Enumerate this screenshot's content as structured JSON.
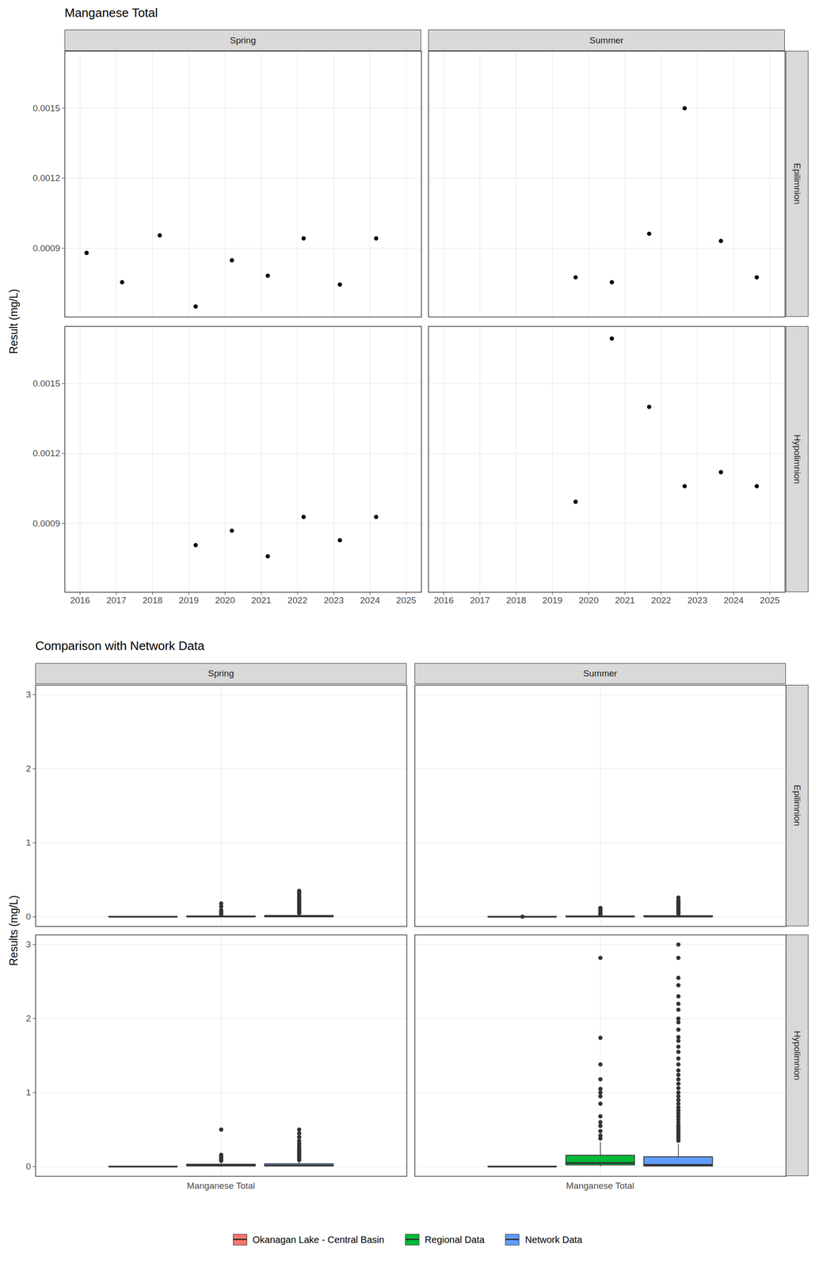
{
  "chart_data": [
    {
      "type": "scatter",
      "title": "Manganese Total",
      "y_label": "Result (mg/L)",
      "color": "#000000",
      "grid": true,
      "facets": {
        "columns": [
          "Spring",
          "Summer"
        ],
        "rows": [
          "Epilimnion",
          "Hypolimnion"
        ]
      },
      "xlim": [
        2015.58,
        2025.42
      ],
      "xticks": [
        2016,
        2017,
        2018,
        2019,
        2020,
        2021,
        2022,
        2023,
        2024,
        2025
      ],
      "ylim": [
        0.000605,
        0.001745
      ],
      "yticks": [
        0.0009,
        0.0012,
        0.0015
      ],
      "panels": [
        {
          "column": "Spring",
          "row": "Epilimnion",
          "x": [
            2016.18,
            2017.16,
            2018.2,
            2019.19,
            2020.19,
            2021.18,
            2022.17,
            2023.17,
            2024.17
          ],
          "values": [
            0.00088,
            0.000754,
            0.000955,
            0.00065,
            0.000848,
            0.000782,
            0.000942,
            0.000744,
            0.000942
          ]
        },
        {
          "column": "Summer",
          "row": "Epilimnion",
          "x": [
            2019.64,
            2020.64,
            2021.67,
            2022.65,
            2023.65,
            2024.64
          ],
          "values": [
            0.000775,
            0.000754,
            0.000962,
            0.0015,
            0.000931,
            0.000775
          ]
        },
        {
          "column": "Spring",
          "row": "Hypolimnion",
          "x": [
            2019.19,
            2020.19,
            2021.18,
            2022.17,
            2023.17,
            2024.17
          ],
          "values": [
            0.000807,
            0.000869,
            0.000759,
            0.000928,
            0.000828,
            0.000928
          ]
        },
        {
          "column": "Summer",
          "row": "Hypolimnion",
          "x": [
            2019.64,
            2020.64,
            2021.67,
            2022.65,
            2023.65,
            2024.64
          ],
          "values": [
            0.000993,
            0.001693,
            0.0014,
            0.00106,
            0.00112,
            0.00106
          ]
        }
      ]
    },
    {
      "type": "boxplot",
      "title": "Comparison with Network Data",
      "y_label": "Results (mg/L)",
      "grid": true,
      "legend": "bottom",
      "category": "Manganese Total",
      "facets": {
        "columns": [
          "Spring",
          "Summer"
        ],
        "rows": [
          "Epilimnion",
          "Hypolimnion"
        ]
      },
      "ylim": [
        -0.13,
        3.13
      ],
      "yticks": [
        0,
        1,
        2,
        3
      ],
      "series": [
        {
          "name": "Okanagan Lake - Central Basin",
          "color": "#F8766D"
        },
        {
          "name": "Regional Data",
          "color": "#00BA38"
        },
        {
          "name": "Network Data",
          "color": "#619CFF"
        }
      ],
      "panels": [
        {
          "column": "Spring",
          "row": "Epilimnion",
          "boxes": [
            {
              "q1": 0.0007,
              "median": 0.0008,
              "q3": 0.0009,
              "whisker_low": 0.0006,
              "whisker_high": 0.001,
              "outliers": []
            },
            {
              "q1": 0.001,
              "median": 0.003,
              "q3": 0.008,
              "whisker_low": 0,
              "whisker_high": 0.018,
              "outliers": [
                0.03,
                0.05,
                0.07,
                0.09,
                0.14,
                0.18
              ]
            },
            {
              "q1": 0.002,
              "median": 0.005,
              "q3": 0.015,
              "whisker_low": 0,
              "whisker_high": 0.035,
              "outliers": [
                0.05,
                0.07,
                0.09,
                0.11,
                0.13,
                0.15,
                0.17,
                0.19,
                0.21,
                0.23,
                0.25,
                0.27,
                0.3,
                0.33,
                0.35
              ]
            }
          ]
        },
        {
          "column": "Summer",
          "row": "Epilimnion",
          "boxes": [
            {
              "q1": 0.0007,
              "median": 0.0008,
              "q3": 0.00095,
              "whisker_low": 0.0007,
              "whisker_high": 0.00097,
              "outliers": [
                0.0015
              ]
            },
            {
              "q1": 0.001,
              "median": 0.003,
              "q3": 0.008,
              "whisker_low": 0,
              "whisker_high": 0.018,
              "outliers": [
                0.03,
                0.05,
                0.07,
                0.09,
                0.11,
                0.12
              ]
            },
            {
              "q1": 0.001,
              "median": 0.004,
              "q3": 0.012,
              "whisker_low": 0,
              "whisker_high": 0.028,
              "outliers": [
                0.04,
                0.06,
                0.08,
                0.1,
                0.12,
                0.14,
                0.16,
                0.18,
                0.2,
                0.22,
                0.26
              ]
            }
          ]
        },
        {
          "column": "Spring",
          "row": "Hypolimnion",
          "boxes": [
            {
              "q1": 0.0008,
              "median": 0.00085,
              "q3": 0.00093,
              "whisker_low": 0.00076,
              "whisker_high": 0.00093,
              "outliers": []
            },
            {
              "q1": 0.008,
              "median": 0.015,
              "q3": 0.03,
              "whisker_low": 0,
              "whisker_high": 0.06,
              "outliers": [
                0.08,
                0.1,
                0.12,
                0.14,
                0.16,
                0.5
              ]
            },
            {
              "q1": 0.008,
              "median": 0.015,
              "q3": 0.035,
              "whisker_low": 0,
              "whisker_high": 0.07,
              "outliers": [
                0.09,
                0.11,
                0.13,
                0.15,
                0.17,
                0.19,
                0.21,
                0.23,
                0.25,
                0.28,
                0.31,
                0.35,
                0.4,
                0.45,
                0.5
              ]
            }
          ]
        },
        {
          "column": "Summer",
          "row": "Hypolimnion",
          "boxes": [
            {
              "q1": 0.00106,
              "median": 0.00109,
              "q3": 0.0013,
              "whisker_low": 0.001,
              "whisker_high": 0.0017,
              "outliers": []
            },
            {
              "q1": 0.02,
              "median": 0.05,
              "q3": 0.15,
              "whisker_low": 0,
              "whisker_high": 0.33,
              "outliers": [
                0.38,
                0.42,
                0.48,
                0.55,
                0.6,
                0.68,
                0.85,
                0.95,
                1.0,
                1.05,
                1.18,
                1.38,
                1.74,
                2.82
              ]
            },
            {
              "q1": 0.005,
              "median": 0.025,
              "q3": 0.13,
              "whisker_low": 0,
              "whisker_high": 0.3,
              "outliers": [
                0.35,
                0.38,
                0.41,
                0.44,
                0.47,
                0.5,
                0.53,
                0.56,
                0.6,
                0.64,
                0.68,
                0.72,
                0.76,
                0.8,
                0.85,
                0.9,
                0.95,
                1.0,
                1.06,
                1.12,
                1.18,
                1.24,
                1.3,
                1.38,
                1.46,
                1.55,
                1.62,
                1.7,
                1.75,
                1.85,
                1.95,
                2.0,
                2.12,
                2.2,
                2.3,
                2.45,
                2.55,
                2.82,
                3.0
              ]
            }
          ]
        }
      ]
    }
  ]
}
